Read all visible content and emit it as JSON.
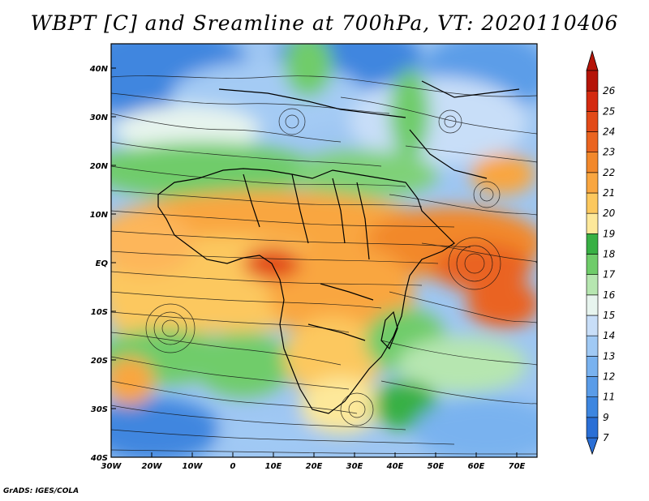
{
  "title": "WBPT [C] and Sreamline at 700hPa, VT: 2020110406",
  "map": {
    "variable": "Wet-bulb potential temperature",
    "unit": "C",
    "level": "700hPa",
    "valid_time": "2020110406",
    "lon_range": [
      -30,
      75
    ],
    "lat_range": [
      -40,
      45
    ],
    "lon_ticks": [
      {
        "value": -30,
        "label": "30W"
      },
      {
        "value": -20,
        "label": "20W"
      },
      {
        "value": -10,
        "label": "10W"
      },
      {
        "value": 0,
        "label": "0"
      },
      {
        "value": 10,
        "label": "10E"
      },
      {
        "value": 20,
        "label": "20E"
      },
      {
        "value": 30,
        "label": "30E"
      },
      {
        "value": 40,
        "label": "40E"
      },
      {
        "value": 50,
        "label": "50E"
      },
      {
        "value": 60,
        "label": "60E"
      },
      {
        "value": 70,
        "label": "70E"
      }
    ],
    "lat_ticks": [
      {
        "value": 40,
        "label": "40N"
      },
      {
        "value": 30,
        "label": "30N"
      },
      {
        "value": 20,
        "label": "20N"
      },
      {
        "value": 10,
        "label": "10N"
      },
      {
        "value": 0,
        "label": "EQ"
      },
      {
        "value": -10,
        "label": "10S"
      },
      {
        "value": -20,
        "label": "20S"
      },
      {
        "value": -30,
        "label": "30S"
      },
      {
        "value": -40,
        "label": "40S"
      }
    ],
    "colorbar": [
      {
        "label": "7",
        "color": "#2a6fd6"
      },
      {
        "label": "9",
        "color": "#3d86e0"
      },
      {
        "label": "11",
        "color": "#5a9ce8"
      },
      {
        "label": "12",
        "color": "#79b2ef"
      },
      {
        "label": "13",
        "color": "#a0c9f4"
      },
      {
        "label": "14",
        "color": "#c8def8"
      },
      {
        "label": "15",
        "color": "#e7f4ee"
      },
      {
        "label": "16",
        "color": "#b6e6b0"
      },
      {
        "label": "17",
        "color": "#6fcc6a"
      },
      {
        "label": "18",
        "color": "#38b044"
      },
      {
        "label": "19",
        "color": "#fde89a"
      },
      {
        "label": "20",
        "color": "#fcc85e"
      },
      {
        "label": "21",
        "color": "#f9a640"
      },
      {
        "label": "22",
        "color": "#f2882b"
      },
      {
        "label": "23",
        "color": "#ea6420"
      },
      {
        "label": "24",
        "color": "#e24a18"
      },
      {
        "label": "25",
        "color": "#d42a10"
      },
      {
        "label": "26",
        "color": "#b51408"
      }
    ]
  },
  "credit": "GrADS: IGES/COLA"
}
